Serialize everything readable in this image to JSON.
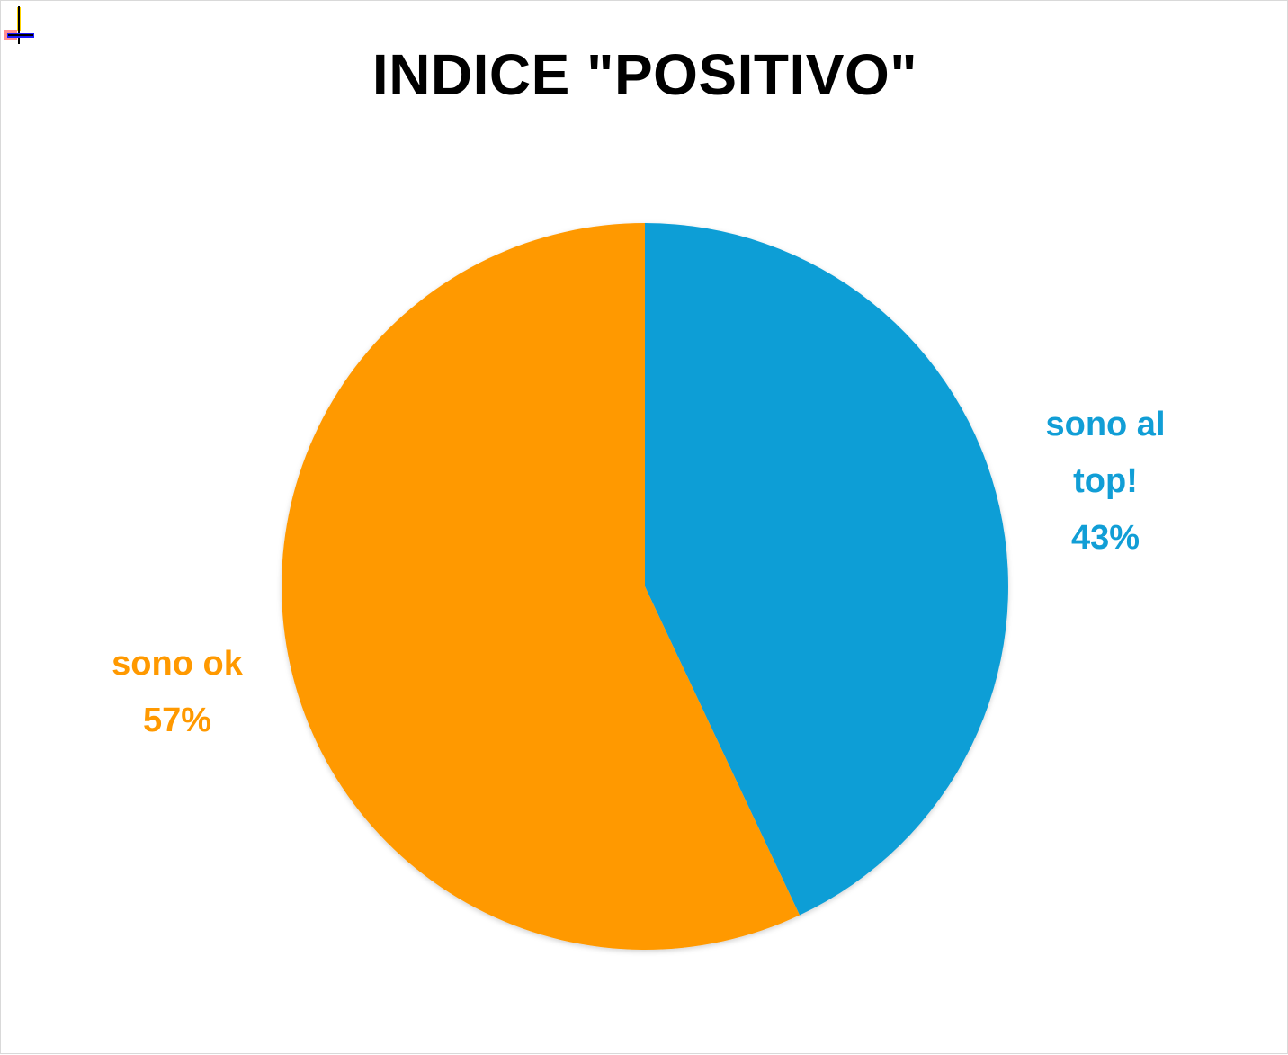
{
  "chart_data": {
    "type": "pie",
    "title": "INDICE \"POSITIVO\"",
    "slices": [
      {
        "label": "sono al top!",
        "value": 43,
        "value_label": "43%",
        "color": "#119ED6"
      },
      {
        "label": "sono ok",
        "value": 57,
        "value_label": "57%",
        "color": "#FF9900"
      }
    ],
    "start_angle": "12 o'clock",
    "direction": "clockwise",
    "legend": "none (data labels outside slices)"
  },
  "colors": {
    "background": "#ffffff",
    "border": "#d9d9d9",
    "title": "#000000"
  },
  "icons": {
    "corner_handle": "resize-handle-icon"
  }
}
